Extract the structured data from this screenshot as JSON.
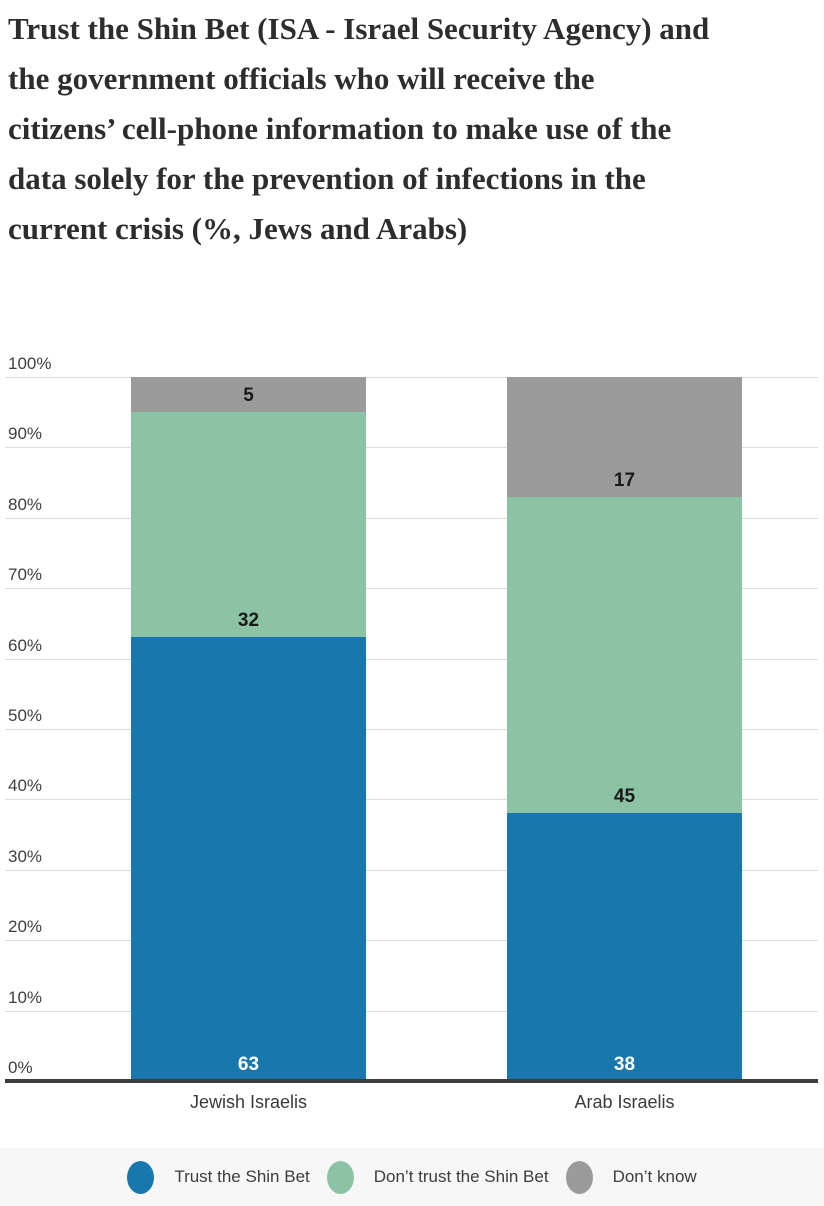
{
  "title_lines": [
    "Trust the Shin Bet (ISA - Israel Security Agency) and",
    "the government officials who will receive the",
    "citizens’ cell-phone information to make use of the",
    "data solely for the prevention of infections in the",
    "current crisis (%, Jews and Arabs)"
  ],
  "chart_data": {
    "type": "bar",
    "stacked": true,
    "percent_scale": true,
    "categories": [
      "Jewish Israelis",
      "Arab Israelis"
    ],
    "series": [
      {
        "name": "Trust the Shin Bet",
        "values": [
          63,
          38
        ],
        "color": "#1878ad",
        "label_color": "#ffffff"
      },
      {
        "name": "Don’t trust the Shin Bet",
        "values": [
          32,
          45
        ],
        "color": "#8bc3a4",
        "label_color": "#1a1a1a"
      },
      {
        "name": "Don’t know",
        "values": [
          5,
          17
        ],
        "color": "#9b9b9b",
        "label_color": "#1a1a1a"
      }
    ],
    "y_ticks": [
      "0%",
      "10%",
      "20%",
      "30%",
      "40%",
      "50%",
      "60%",
      "70%",
      "80%",
      "90%",
      "100%"
    ],
    "ylim": [
      0,
      100
    ],
    "grid": true,
    "data_labels": true,
    "legend_position": "bottom"
  },
  "colors": {
    "axis_line": "#3d3d3d",
    "gridline": "#dcdcdc",
    "tick_text": "#3f3f3f",
    "title_text": "#2d2d2d",
    "legend_background": "#f7f7f7"
  }
}
